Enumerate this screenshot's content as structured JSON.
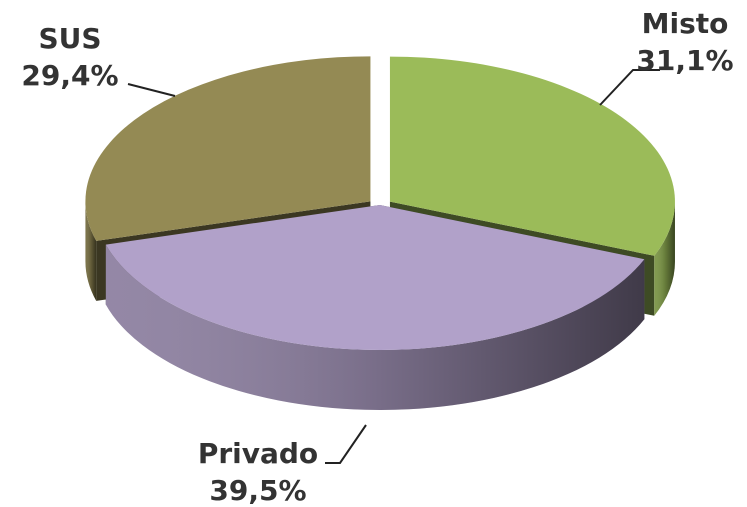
{
  "chart_data": {
    "type": "pie",
    "categories": [
      "Misto",
      "Privado",
      "SUS"
    ],
    "values": [
      31.1,
      39.5,
      29.4
    ],
    "value_labels": [
      "31,1%",
      "39,5%",
      "29,4%"
    ],
    "colors": [
      "#9bbb59",
      "#b1a1c9",
      "#948a54"
    ]
  }
}
